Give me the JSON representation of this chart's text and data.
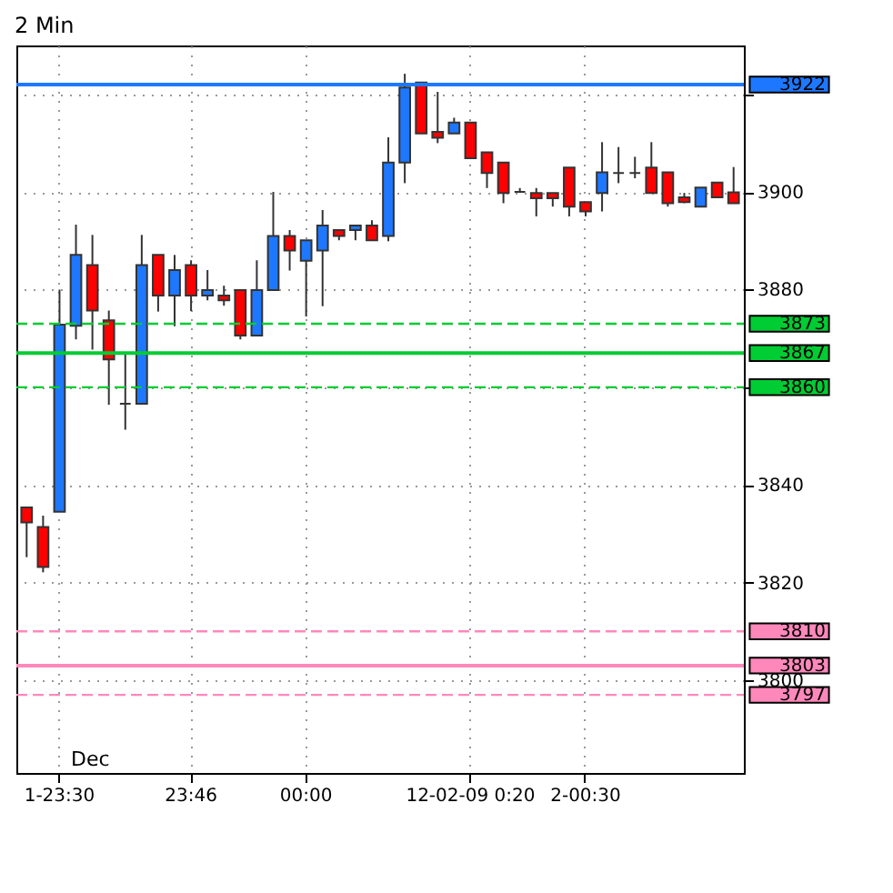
{
  "chart_data": {
    "type": "candlestick",
    "title": "2 Min",
    "categories": [
      null,
      null,
      "1-23:30",
      null,
      null,
      null,
      null,
      null,
      null,
      null,
      "23:46",
      null,
      null,
      null,
      null,
      null,
      null,
      "00:00",
      null,
      null,
      null,
      null,
      null,
      null,
      null,
      null,
      null,
      "12-02-09 0:20",
      null,
      null,
      null,
      null,
      null,
      null,
      "2-00:30",
      null,
      null,
      null,
      null,
      null,
      null,
      null,
      null,
      null
    ],
    "ohlc": [
      [
        3835.4,
        3835.4,
        3825.2,
        3832.3
      ],
      [
        3831.4,
        3833.7,
        3822.1,
        3823.2
      ],
      [
        3834.5,
        3880.0,
        3834.5,
        3872.8
      ],
      [
        3872.6,
        3893.3,
        3869.8,
        3887.1
      ],
      [
        3885.0,
        3891.2,
        3867.7,
        3875.7
      ],
      [
        3873.7,
        3875.7,
        3856.4,
        3865.7
      ],
      [
        3856.6,
        3867.0,
        3851.3,
        3856.6
      ],
      [
        3856.6,
        3891.2,
        3856.6,
        3885.0
      ],
      [
        3887.1,
        3887.1,
        3875.5,
        3878.8
      ],
      [
        3878.8,
        3887.1,
        3872.5,
        3884.0
      ],
      [
        3885.0,
        3886.0,
        3875.6,
        3878.8
      ],
      [
        3878.8,
        3884.0,
        3877.8,
        3879.9
      ],
      [
        3878.8,
        3880.8,
        3876.7,
        3877.8
      ],
      [
        3879.9,
        3879.9,
        3869.8,
        3870.6
      ],
      [
        3870.6,
        3886.0,
        3870.6,
        3879.9
      ],
      [
        3879.9,
        3900.0,
        3879.9,
        3891.0
      ],
      [
        3891.0,
        3892.2,
        3883.9,
        3888.0
      ],
      [
        3885.9,
        3890.1,
        3874.5,
        3890.1
      ],
      [
        3888.0,
        3896.3,
        3876.6,
        3893.1
      ],
      [
        3892.2,
        3892.2,
        3890.1,
        3891.0
      ],
      [
        3892.2,
        3893.1,
        3890.1,
        3893.1
      ],
      [
        3893.1,
        3894.2,
        3890.1,
        3890.1
      ],
      [
        3891.0,
        3911.2,
        3889.9,
        3906.0
      ],
      [
        3906.0,
        3924.2,
        3901.8,
        3921.4
      ],
      [
        3922.4,
        3922.4,
        3912.0,
        3912.0
      ],
      [
        3912.3,
        3920.5,
        3910.0,
        3911.1
      ],
      [
        3912.0,
        3915.2,
        3912.0,
        3914.2
      ],
      [
        3914.2,
        3914.2,
        3906.9,
        3906.9
      ],
      [
        3908.1,
        3908.1,
        3900.8,
        3903.9
      ],
      [
        3906.0,
        3906.0,
        3897.7,
        3899.8
      ],
      [
        3900.0,
        3900.8,
        3900.0,
        3900.0
      ],
      [
        3899.8,
        3900.8,
        3895.0,
        3898.7
      ],
      [
        3899.8,
        3899.8,
        3897.0,
        3898.7
      ],
      [
        3905.0,
        3905.0,
        3895.0,
        3897.0
      ],
      [
        3897.9,
        3897.9,
        3895.0,
        3896.0
      ],
      [
        3899.8,
        3910.2,
        3896.0,
        3904.0
      ],
      [
        3903.9,
        3909.2,
        3901.8,
        3903.9
      ],
      [
        3903.9,
        3907.2,
        3902.8,
        3903.9
      ],
      [
        3905.0,
        3910.2,
        3899.8,
        3899.8
      ],
      [
        3904.0,
        3904.0,
        3897.0,
        3897.7
      ],
      [
        3898.9,
        3899.8,
        3897.7,
        3897.9
      ],
      [
        3897.0,
        3900.9,
        3897.0,
        3900.9
      ],
      [
        3901.9,
        3901.9,
        3898.9,
        3898.9
      ],
      [
        3899.9,
        3905.1,
        3897.7,
        3897.7
      ]
    ],
    "colors": [
      "#ff0000",
      "#ff0000",
      "#1e78ff",
      "#1e78ff",
      "#ff0000",
      "#ff0000",
      "#333333",
      "#1e78ff",
      "#ff0000",
      "#1e78ff",
      "#ff0000",
      "#1e78ff",
      "#ff0000",
      "#ff0000",
      "#1e78ff",
      "#1e78ff",
      "#ff0000",
      "#1e78ff",
      "#1e78ff",
      "#ff0000",
      "#1e78ff",
      "#ff0000",
      "#1e78ff",
      "#1e78ff",
      "#ff0000",
      "#ff0000",
      "#1e78ff",
      "#ff0000",
      "#ff0000",
      "#ff0000",
      "#333333",
      "#ff0000",
      "#ff0000",
      "#ff0000",
      "#ff0000",
      "#1e78ff",
      "#333333",
      "#333333",
      "#ff0000",
      "#ff0000",
      "#ff0000",
      "#1e78ff",
      "#ff0000",
      "#ff0000"
    ],
    "ylim": [
      3781,
      3930
    ],
    "yticks": [
      3800,
      3820,
      3840,
      {
        "value": 3860,
        "label": null
      },
      3880,
      3900,
      {
        "value": 3920,
        "label": null
      }
    ],
    "grid": true,
    "ref_lines": [
      {
        "axis": "y",
        "value": 3922,
        "label": "3922",
        "color": "#1e78ff",
        "line_style": "solid"
      },
      {
        "axis": "y",
        "value": 3873,
        "label": "3873",
        "color": "#00cc33",
        "line_style": "dashed"
      },
      {
        "axis": "y",
        "value": 3867,
        "label": "3867",
        "color": "#00cc33",
        "line_style": "solid"
      },
      {
        "axis": "y",
        "value": 3860,
        "label": "3860",
        "color": "#00cc33",
        "line_style": "dashed"
      },
      {
        "axis": "y",
        "value": 3810,
        "label": "3810",
        "color": "#ff88bb",
        "line_style": "dashed"
      },
      {
        "axis": "y",
        "value": 3803,
        "label": "3803",
        "color": "#ff88bb",
        "line_style": "solid"
      },
      {
        "axis": "y",
        "value": 3797,
        "label": "3797",
        "color": "#ff88bb",
        "line_style": "dashed"
      }
    ],
    "annotations": [
      "Dec"
    ]
  }
}
